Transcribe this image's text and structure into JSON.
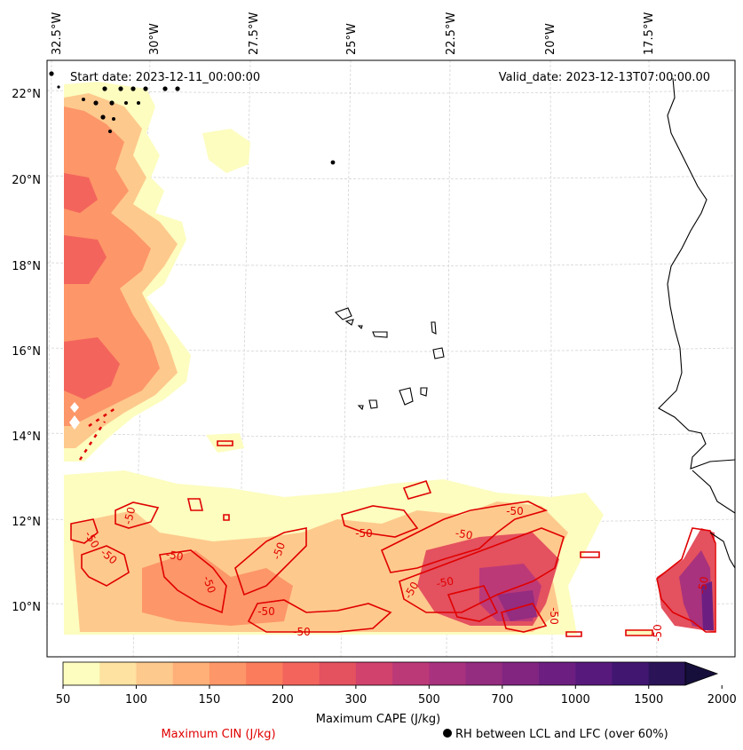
{
  "map": {
    "start_date": "Start date: 2023-12-11_00:00:00",
    "valid_date": "Valid_date: 2023-12-13T07:00:00.00",
    "lon_labels": [
      "32.5°W",
      "30°W",
      "27.5°W",
      "25°W",
      "22.5°W",
      "20°W",
      "17.5°W"
    ],
    "lat_labels": [
      "22°N",
      "20°N",
      "18°N",
      "16°N",
      "14°N",
      "12°N",
      "10°N"
    ],
    "cin_contour_label": "-50",
    "cin_label_count": 16
  },
  "colorbar": {
    "ticks": [
      "50",
      "100",
      "150",
      "200",
      "300",
      "500",
      "700",
      "1000",
      "1500",
      "2000"
    ],
    "label": "Maximum CAPE (J/kg)",
    "extend": "max",
    "colors": [
      "#fcfdbf",
      "#fde2a1",
      "#fec98d",
      "#feb078",
      "#fd9668",
      "#fb7c5c",
      "#f3655c",
      "#e4515f",
      "#d1426d",
      "#bc3978",
      "#a8327d",
      "#942c80",
      "#812581",
      "#6c1f80",
      "#571a7c",
      "#401671",
      "#2a1357",
      "#160f3b"
    ]
  },
  "legend": {
    "cin_label": "Maximum CIN (J/kg)",
    "rh_label": "RH between LCL and LFC (over 60%)",
    "cin_color": "#e00000",
    "rh_marker": "filled-circle"
  }
}
